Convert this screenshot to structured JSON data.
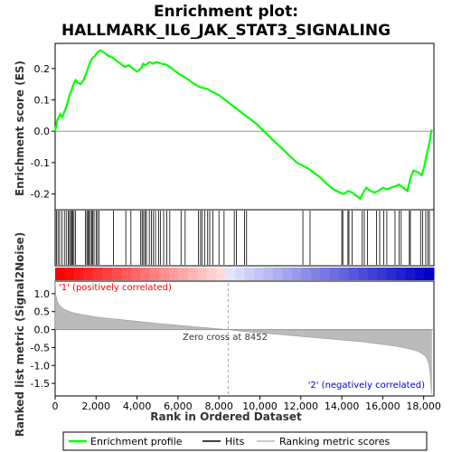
{
  "chart_data": {
    "type": "line",
    "title_line1": "Enrichment plot:",
    "title_line2": "HALLMARK_IL6_JAK_STAT3_SIGNALING",
    "xlabel": "Rank in Ordered Dataset",
    "ylabel_top": "Enrichment score (ES)",
    "ylabel_bottom": "Ranked list metric (Signal2Noise)",
    "xlim": [
      0,
      18500
    ],
    "x_ticks": [
      0,
      2000,
      4000,
      6000,
      8000,
      10000,
      12000,
      14000,
      16000,
      18000
    ],
    "x_tick_labels": [
      "0",
      "2,000",
      "4,000",
      "6,000",
      "8,000",
      "10,000",
      "12,000",
      "14,000",
      "16,000",
      "18,000"
    ],
    "es_ylim": [
      -0.25,
      0.28
    ],
    "es_ticks": [
      -0.2,
      -0.1,
      0.0,
      0.1,
      0.2
    ],
    "es_tick_labels": [
      "-0.2",
      "-0.1",
      "0.0",
      "0.1",
      "0.2"
    ],
    "metric_ylim": [
      -1.85,
      1.35
    ],
    "metric_ticks": [
      -1.5,
      -1.0,
      -0.5,
      0.0,
      0.5,
      1.0
    ],
    "metric_tick_labels": [
      "-1.5",
      "-1.0",
      "-0.5",
      "0.0",
      "0.5",
      "1.0"
    ],
    "enrichment_profile": {
      "x": [
        0,
        100,
        250,
        350,
        500,
        600,
        700,
        800,
        900,
        1000,
        1100,
        1250,
        1400,
        1550,
        1650,
        1750,
        1850,
        1950,
        2050,
        2200,
        2400,
        2600,
        2800,
        3000,
        3200,
        3400,
        3600,
        3800,
        4000,
        4200,
        4300,
        4400,
        4500,
        4600,
        4700,
        4800,
        4900,
        5000,
        5200,
        5400,
        5600,
        5800,
        6000,
        6200,
        6500,
        6800,
        7100,
        7400,
        7700,
        8000,
        8300,
        8600,
        9000,
        9400,
        9800,
        10200,
        10600,
        11000,
        11400,
        11800,
        12100,
        12400,
        12700,
        13000,
        13300,
        13600,
        13900,
        14100,
        14300,
        14500,
        14700,
        14900,
        15050,
        15200,
        15400,
        15600,
        15800,
        16000,
        16200,
        16400,
        16600,
        16800,
        17000,
        17200,
        17350,
        17500,
        17700,
        17900,
        18000,
        18100,
        18200,
        18300,
        18380
      ],
      "y": [
        0.0,
        0.035,
        0.055,
        0.045,
        0.07,
        0.09,
        0.115,
        0.13,
        0.15,
        0.163,
        0.155,
        0.15,
        0.165,
        0.19,
        0.21,
        0.225,
        0.235,
        0.24,
        0.25,
        0.258,
        0.25,
        0.24,
        0.235,
        0.225,
        0.215,
        0.205,
        0.21,
        0.2,
        0.19,
        0.2,
        0.215,
        0.21,
        0.215,
        0.22,
        0.218,
        0.215,
        0.22,
        0.22,
        0.215,
        0.213,
        0.205,
        0.195,
        0.185,
        0.177,
        0.165,
        0.15,
        0.14,
        0.135,
        0.125,
        0.115,
        0.1,
        0.085,
        0.065,
        0.045,
        0.025,
        0.0,
        -0.025,
        -0.05,
        -0.075,
        -0.1,
        -0.11,
        -0.12,
        -0.135,
        -0.15,
        -0.17,
        -0.185,
        -0.195,
        -0.2,
        -0.19,
        -0.195,
        -0.205,
        -0.215,
        -0.195,
        -0.18,
        -0.19,
        -0.195,
        -0.19,
        -0.18,
        -0.185,
        -0.18,
        -0.175,
        -0.17,
        -0.18,
        -0.19,
        -0.15,
        -0.125,
        -0.13,
        -0.14,
        -0.12,
        -0.09,
        -0.06,
        -0.03,
        0.005
      ]
    },
    "hits": [
      60,
      140,
      220,
      330,
      450,
      540,
      640,
      700,
      760,
      810,
      860,
      920,
      1000,
      1480,
      1550,
      1600,
      1660,
      1720,
      1790,
      1840,
      1900,
      2000,
      2070,
      2150,
      2850,
      3450,
      3700,
      4180,
      4250,
      4320,
      4400,
      4460,
      4600,
      4700,
      4800,
      4900,
      5050,
      5150,
      5300,
      5450,
      5600,
      6150,
      6350,
      7000,
      7100,
      7180,
      7300,
      7450,
      7550,
      7700,
      8000,
      8250,
      8750,
      8850,
      9250,
      9350,
      12100,
      12450,
      14000,
      14050,
      14300,
      14350,
      14500,
      15000,
      15100,
      15250,
      15700,
      15850,
      16050,
      16200,
      16600,
      16800,
      16900,
      17300,
      17350,
      17850,
      17950,
      18100,
      18200,
      18280
    ],
    "metric_profile": {
      "x": [
        0,
        40,
        100,
        200,
        400,
        700,
        1000,
        1500,
        2000,
        3000,
        4000,
        5000,
        6000,
        7000,
        8000,
        8452,
        9000,
        10000,
        11000,
        12000,
        13000,
        14000,
        15000,
        16000,
        16500,
        17000,
        17400,
        17700,
        17900,
        18050,
        18150,
        18250,
        18320,
        18380
      ],
      "y": [
        1.35,
        0.95,
        0.78,
        0.68,
        0.58,
        0.5,
        0.45,
        0.4,
        0.35,
        0.29,
        0.23,
        0.17,
        0.12,
        0.07,
        0.02,
        0.0,
        -0.04,
        -0.09,
        -0.14,
        -0.19,
        -0.24,
        -0.29,
        -0.34,
        -0.41,
        -0.45,
        -0.5,
        -0.55,
        -0.6,
        -0.66,
        -0.72,
        -0.8,
        -0.95,
        -1.25,
        -1.8
      ]
    },
    "zero_cross": 8452,
    "zero_cross_label": "Zero cross at 8452",
    "pos_label": "'1' (positively correlated)",
    "neg_label": "'2' (negatively correlated)",
    "legend": [
      {
        "label": "Enrichment profile",
        "color": "#00ff00",
        "kind": "line"
      },
      {
        "label": "Hits",
        "color": "#000000",
        "kind": "line"
      },
      {
        "label": "Ranking metric scores",
        "color": "#bbbbbb",
        "kind": "line"
      }
    ],
    "colors": {
      "enrichment": "#00ff00",
      "metric_fill": "#bbbbbb",
      "pos_text": "#ff0000",
      "neg_text": "#0000cc",
      "bar_pos": "#ff0000",
      "bar_neg": "#0000cc"
    }
  }
}
